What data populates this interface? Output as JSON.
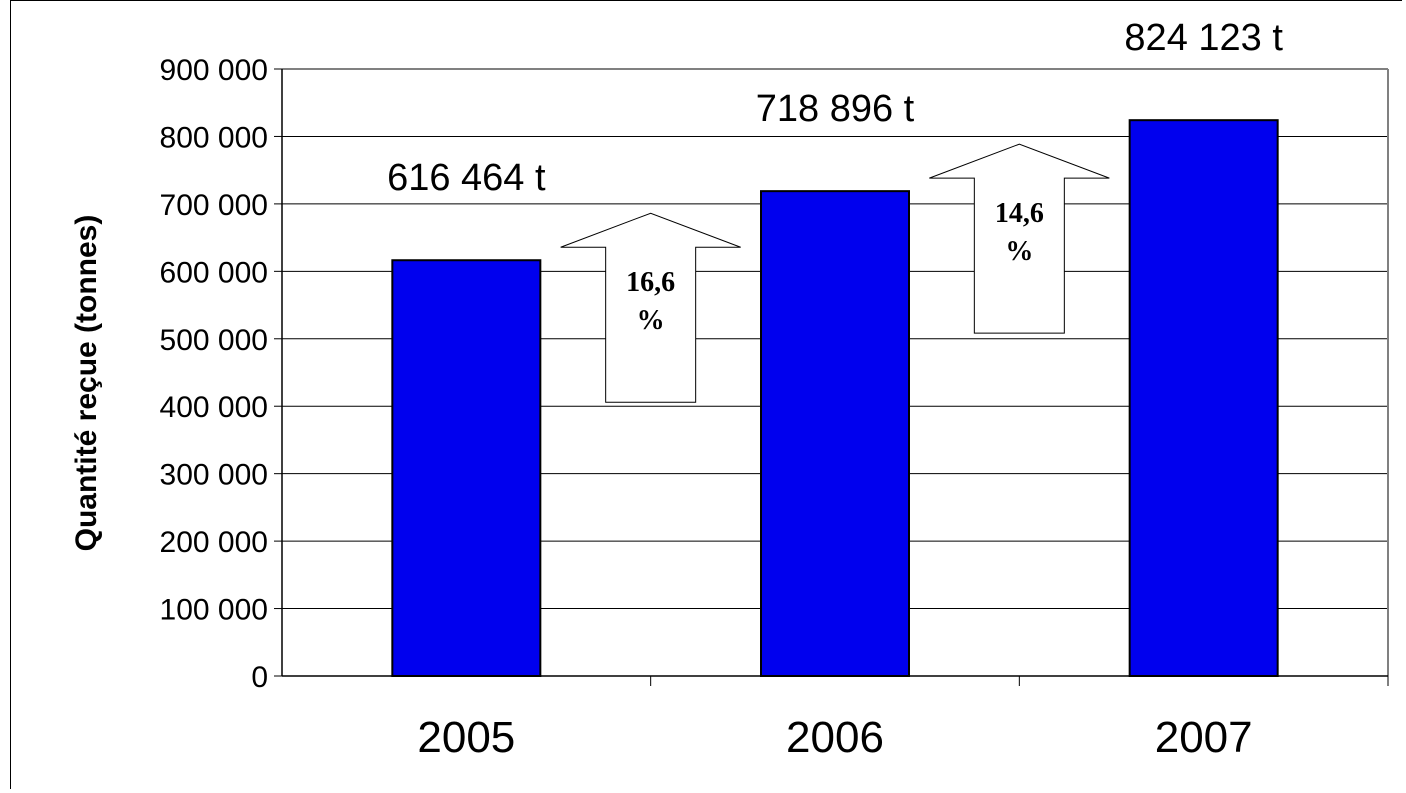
{
  "chart_data": {
    "type": "bar",
    "categories": [
      "2005",
      "2006",
      "2007"
    ],
    "values": [
      616464,
      718896,
      824123
    ],
    "data_labels": [
      "616 464 t",
      "718 896 t",
      "824 123 t"
    ],
    "ylabel": "Quantité reçue (tonnes)",
    "ylim": [
      0,
      900000
    ],
    "yticks": [
      0,
      100000,
      200000,
      300000,
      400000,
      500000,
      600000,
      700000,
      800000,
      900000
    ],
    "ytick_labels": [
      "0",
      "100 000",
      "200 000",
      "300 000",
      "400 000",
      "500 000",
      "600 000",
      "700 000",
      "800 000",
      "900 000"
    ],
    "grid": true,
    "bar_color": "#0000ee",
    "growth_arrows": [
      {
        "line1": "16,6",
        "line2": "%"
      },
      {
        "line1": "14,6",
        "line2": "%"
      }
    ]
  }
}
